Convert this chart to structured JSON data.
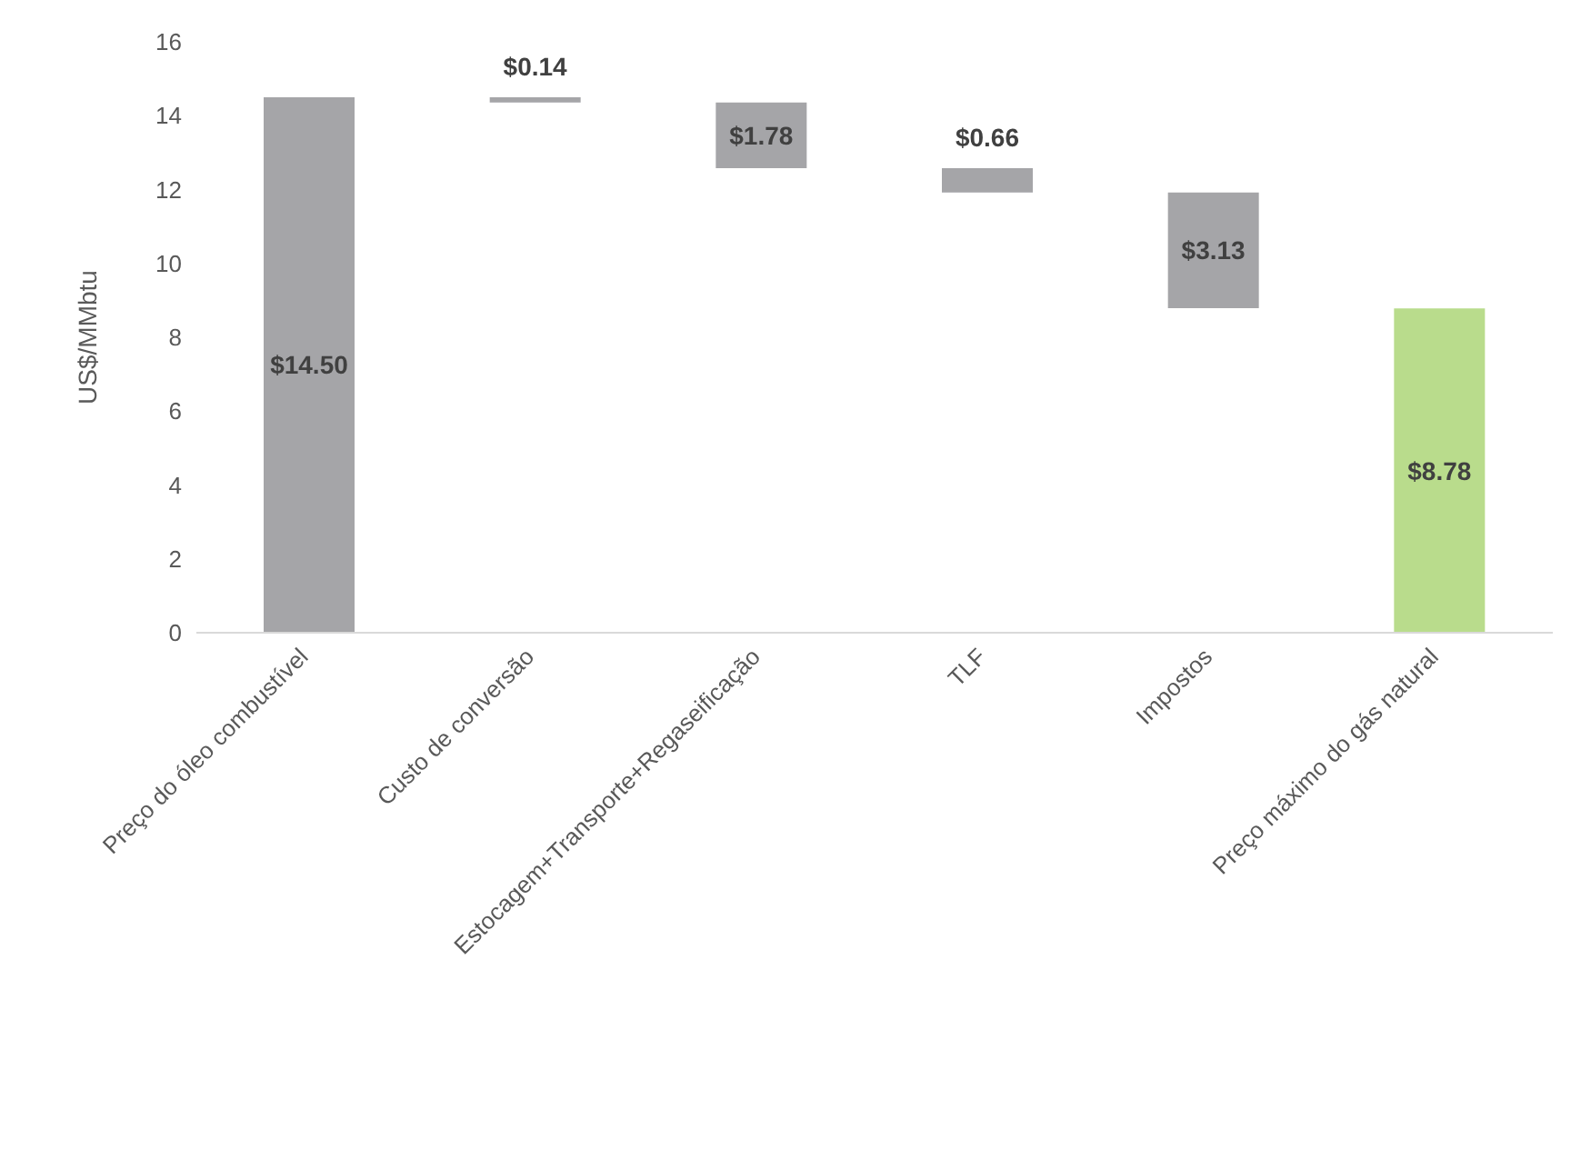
{
  "chart_data": {
    "type": "bar",
    "ylabel": "US$/MMbtu",
    "categories": [
      "Preço do óleo combustível",
      "Custo de conversão",
      "Estocagem+Transporte+Regaseificação",
      "TLF",
      "Impostos",
      "Preço máximo do gás natural"
    ],
    "values": [
      14.5,
      0.14,
      1.78,
      0.66,
      3.13,
      8.78
    ],
    "base": [
      0,
      14.36,
      12.58,
      11.92,
      8.79,
      0
    ],
    "colors": [
      "#a5a5a8",
      "#a5a5a8",
      "#a5a5a8",
      "#a5a5a8",
      "#a5a5a8",
      "#b9dc8c"
    ],
    "value_labels": [
      "$14.50",
      "$0.14",
      "$1.78",
      "$0.66",
      "$3.13",
      "$8.78"
    ],
    "ylim": [
      0,
      16
    ],
    "yticks": [
      0,
      2,
      4,
      6,
      8,
      10,
      12,
      14,
      16
    ],
    "grid": false,
    "legend": false
  }
}
